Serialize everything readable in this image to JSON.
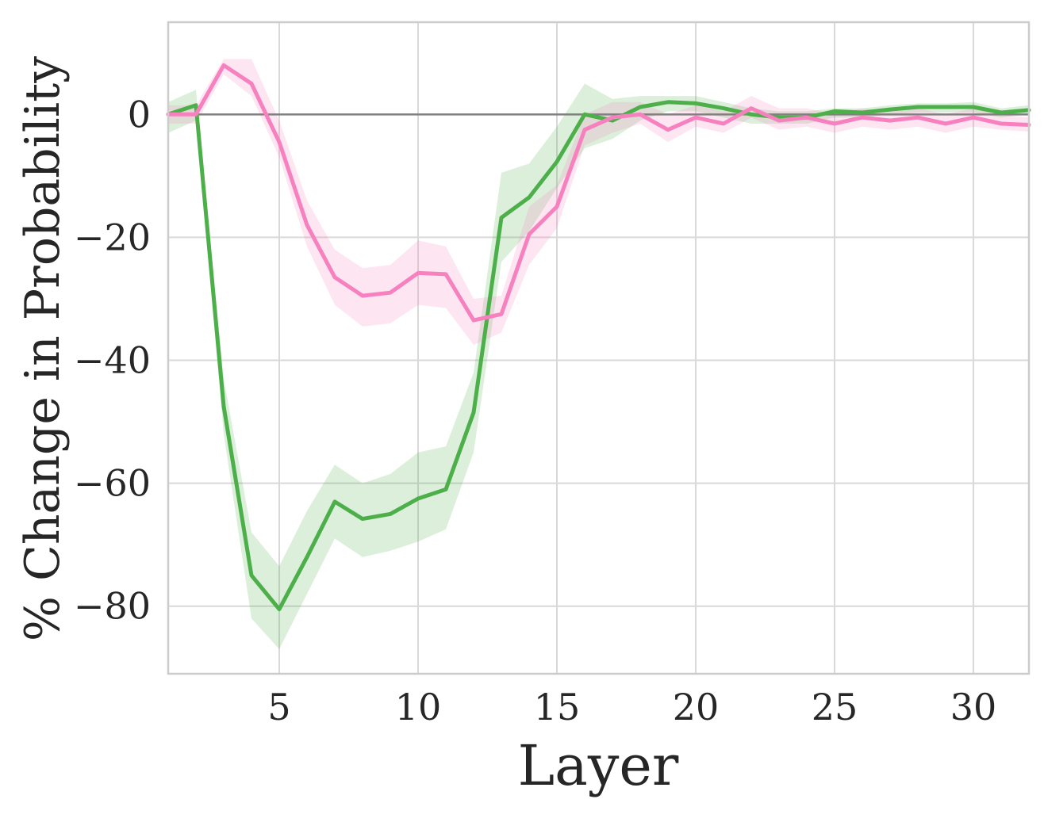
{
  "chart_data": {
    "type": "line",
    "title": "",
    "xlabel": "Layer",
    "ylabel": "% Change in Probability",
    "xlim": [
      1,
      32
    ],
    "ylim": [
      -91,
      15
    ],
    "xticks": [
      5,
      10,
      15,
      20,
      25,
      30
    ],
    "yticks": [
      0,
      -20,
      -40,
      -60,
      -80
    ],
    "grid": true,
    "legend": "none",
    "reference_line": 0,
    "colors": {
      "green_line": "#4daf4a",
      "green_band": "#4daf4a",
      "pink_line": "#f781bf",
      "pink_band": "#f781bf",
      "grid": "#d9d9d9",
      "zero_line": "#808080",
      "frame": "#cccccc"
    },
    "x": [
      1,
      2,
      3,
      4,
      5,
      6,
      7,
      8,
      9,
      10,
      11,
      12,
      13,
      14,
      15,
      16,
      17,
      18,
      19,
      20,
      21,
      22,
      23,
      24,
      25,
      26,
      27,
      28,
      29,
      30,
      31,
      32
    ],
    "series": [
      {
        "color_key": "green",
        "values": [
          0.0,
          1.5,
          -47.5,
          -75.0,
          -80.5,
          -72.0,
          -63.0,
          -65.8,
          -65.0,
          -62.5,
          -61.0,
          -48.5,
          -16.8,
          -13.5,
          -7.7,
          0.0,
          -1.0,
          1.2,
          2.0,
          1.8,
          1.0,
          0.0,
          -0.5,
          -0.5,
          0.5,
          0.3,
          0.8,
          1.2,
          1.2,
          1.2,
          0.3,
          0.7
        ],
        "lower": [
          -3.0,
          -1.0,
          -52.0,
          -82.0,
          -87.0,
          -78.0,
          -69.0,
          -72.0,
          -71.0,
          -69.5,
          -67.5,
          -55.0,
          -24.0,
          -19.0,
          -12.0,
          -5.5,
          -4.0,
          -1.0,
          0.5,
          0.5,
          -0.5,
          -1.5,
          -1.5,
          -1.5,
          -0.5,
          -0.5,
          0.0,
          0.3,
          0.3,
          0.3,
          -0.5,
          0.0
        ],
        "upper": [
          2.0,
          4.0,
          -43.0,
          -68.0,
          -73.5,
          -64.5,
          -57.0,
          -60.0,
          -58.5,
          -55.0,
          -54.0,
          -42.0,
          -9.5,
          -8.0,
          -2.0,
          5.0,
          2.5,
          3.0,
          3.0,
          3.0,
          2.0,
          1.0,
          0.5,
          0.5,
          1.0,
          1.0,
          1.5,
          1.8,
          1.8,
          2.0,
          1.0,
          1.5
        ]
      },
      {
        "color_key": "pink",
        "values": [
          0.0,
          0.0,
          8.0,
          5.0,
          -4.5,
          -18.0,
          -26.5,
          -29.5,
          -29.0,
          -25.8,
          -26.0,
          -33.5,
          -32.5,
          -19.5,
          -15.0,
          -2.5,
          -0.5,
          0.0,
          -2.5,
          -0.5,
          -1.5,
          1.0,
          -1.0,
          -0.5,
          -1.5,
          -0.5,
          -1.0,
          -0.5,
          -1.5,
          -0.5,
          -1.5,
          -1.7
        ],
        "lower": [
          -1.5,
          -1.5,
          6.5,
          3.0,
          -7.0,
          -21.5,
          -31.0,
          -34.5,
          -34.0,
          -31.0,
          -31.5,
          -37.5,
          -35.5,
          -24.5,
          -18.5,
          -5.0,
          -3.0,
          -1.5,
          -4.5,
          -2.0,
          -3.0,
          -0.5,
          -2.5,
          -2.0,
          -3.0,
          -2.0,
          -2.5,
          -2.0,
          -3.0,
          -2.0,
          -2.5,
          -2.8
        ],
        "upper": [
          1.5,
          1.5,
          9.0,
          9.0,
          -1.0,
          -14.0,
          -22.0,
          -25.0,
          -24.5,
          -20.5,
          -21.5,
          -30.0,
          -29.5,
          -15.0,
          -11.5,
          0.0,
          2.0,
          2.0,
          0.0,
          1.5,
          0.5,
          3.0,
          1.0,
          1.0,
          0.0,
          1.0,
          0.5,
          1.0,
          0.0,
          1.0,
          0.0,
          -0.5
        ]
      }
    ]
  }
}
